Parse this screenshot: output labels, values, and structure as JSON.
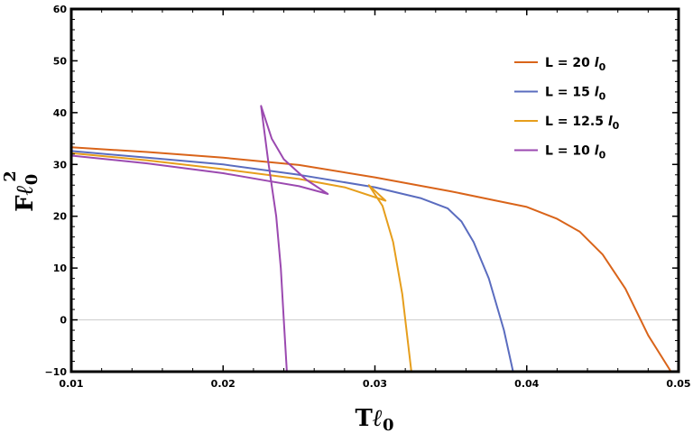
{
  "chart_data": {
    "type": "line",
    "title": "",
    "xlabel": {
      "base": "T",
      "ell": "ℓ",
      "sub": "0"
    },
    "ylabel": {
      "base": "F",
      "ell": "ℓ",
      "sub": "0",
      "sup": "2"
    },
    "xlim": [
      0.01,
      0.05
    ],
    "ylim": [
      -10,
      60
    ],
    "x_ticks": [
      0.01,
      0.02,
      0.03,
      0.04,
      0.05
    ],
    "x_tick_labels": [
      "0.01",
      "0.02",
      "0.03",
      "0.04",
      "0.05"
    ],
    "y_ticks": [
      -10,
      0,
      10,
      20,
      30,
      40,
      50,
      60
    ],
    "y_tick_labels": [
      "−10",
      "0",
      "10",
      "20",
      "30",
      "40",
      "50",
      "60"
    ],
    "zero_line": true,
    "legend_position": "top-right",
    "series": [
      {
        "name": "L = 20 l0",
        "label_main": "L = 20 ",
        "label_l": "l",
        "label_sub": "0",
        "color": "#d9641a",
        "points": [
          [
            0.01,
            33.3
          ],
          [
            0.015,
            32.4
          ],
          [
            0.02,
            31.3
          ],
          [
            0.025,
            29.9
          ],
          [
            0.03,
            27.5
          ],
          [
            0.035,
            24.8
          ],
          [
            0.038,
            23.0
          ],
          [
            0.04,
            21.8
          ],
          [
            0.042,
            19.5
          ],
          [
            0.0435,
            17.0
          ],
          [
            0.045,
            12.6
          ],
          [
            0.0465,
            6.0
          ],
          [
            0.048,
            -3.0
          ],
          [
            0.0495,
            -10.0
          ]
        ]
      },
      {
        "name": "L = 15 l0",
        "label_main": "L = 15 ",
        "label_l": "l",
        "label_sub": "0",
        "color": "#5a6cbf",
        "points": [
          [
            0.01,
            32.6
          ],
          [
            0.015,
            31.3
          ],
          [
            0.02,
            30.0
          ],
          [
            0.025,
            28.0
          ],
          [
            0.03,
            25.6
          ],
          [
            0.033,
            23.5
          ],
          [
            0.0348,
            21.5
          ],
          [
            0.0357,
            19.0
          ],
          [
            0.0365,
            15.0
          ],
          [
            0.0375,
            8.0
          ],
          [
            0.0385,
            -2.0
          ],
          [
            0.0391,
            -10.0
          ]
        ]
      },
      {
        "name": "L = 12.5 l0",
        "label_main": "L = 12.5 ",
        "label_l": "l",
        "label_sub": "0",
        "color": "#e69e1c",
        "points": [
          [
            0.01,
            32.2
          ],
          [
            0.015,
            30.8
          ],
          [
            0.02,
            29.1
          ],
          [
            0.025,
            27.2
          ],
          [
            0.028,
            25.6
          ],
          [
            0.0307,
            23.0
          ],
          [
            0.0296,
            26.0
          ],
          [
            0.0305,
            22.0
          ],
          [
            0.0312,
            15.0
          ],
          [
            0.0318,
            5.0
          ],
          [
            0.0324,
            -10.0
          ]
        ]
      },
      {
        "name": "L = 10 l0",
        "label_main": "L = 10 ",
        "label_l": "l",
        "label_sub": "0",
        "color": "#9b49b0",
        "points": [
          [
            0.01,
            31.7
          ],
          [
            0.015,
            30.2
          ],
          [
            0.02,
            28.3
          ],
          [
            0.023,
            26.8
          ],
          [
            0.025,
            25.8
          ],
          [
            0.0269,
            24.3
          ],
          [
            0.0255,
            27.0
          ],
          [
            0.024,
            31.0
          ],
          [
            0.0232,
            35.0
          ],
          [
            0.0225,
            41.3
          ],
          [
            0.023,
            30.0
          ],
          [
            0.0235,
            20.0
          ],
          [
            0.0238,
            10.0
          ],
          [
            0.024,
            0.0
          ],
          [
            0.0242,
            -10.0
          ]
        ]
      }
    ]
  }
}
